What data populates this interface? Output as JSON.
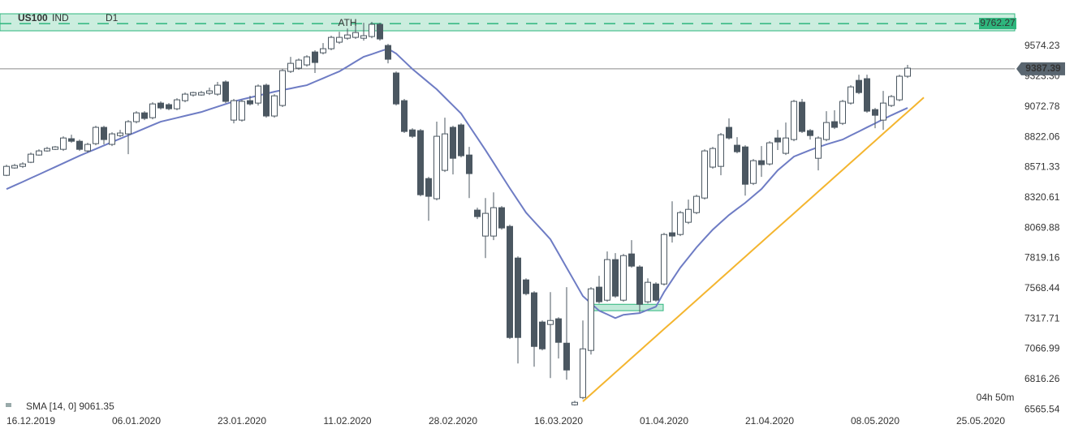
{
  "chart_data": {
    "type": "candlestick",
    "symbol": "US100",
    "market": "IND",
    "timeframe": "D1",
    "categories": [
      null,
      null,
      null,
      "16.12.2019",
      null,
      null,
      null,
      null,
      null,
      null,
      null,
      null,
      null,
      null,
      null,
      null,
      "06.01.2020",
      null,
      null,
      null,
      null,
      null,
      null,
      null,
      null,
      null,
      null,
      null,
      null,
      "23.01.2020",
      null,
      null,
      null,
      null,
      null,
      null,
      null,
      null,
      null,
      null,
      null,
      null,
      "11.02.2020",
      null,
      null,
      null,
      null,
      null,
      null,
      null,
      null,
      null,
      null,
      null,
      null,
      "28.02.2020",
      null,
      null,
      null,
      null,
      null,
      null,
      null,
      null,
      null,
      null,
      null,
      null,
      "16.03.2020",
      null,
      null,
      null,
      null,
      null,
      null,
      null,
      null,
      null,
      null,
      null,
      null,
      "01.04.2020",
      null,
      null,
      null,
      null,
      null,
      null,
      null,
      null,
      null,
      null,
      null,
      null,
      "21.04.2020",
      null,
      null,
      null,
      null,
      null,
      null,
      null,
      null,
      null,
      null,
      null,
      null,
      "08.05.2020",
      null,
      null,
      null,
      null,
      null,
      null,
      null,
      null,
      null,
      null,
      null,
      null,
      "25.05.2020"
    ],
    "open": [
      8506,
      8567,
      8580,
      8614,
      8674,
      8708,
      8721,
      8721,
      8809,
      8788,
      8708,
      8768,
      8903,
      8762,
      8835,
      8849,
      8950,
      9023,
      8983,
      9104,
      9091,
      9057,
      9124,
      9171,
      9171,
      9185,
      9178,
      9279,
      8963,
      8963,
      9124,
      9104,
      9252,
      8997,
      9084,
      9366,
      9393,
      9420,
      9527,
      9520,
      9554,
      9608,
      9641,
      9648,
      9641,
      9655,
      9756,
      9581,
      9353,
      9124,
      8882,
      8876,
      8479,
      8312,
      8547,
      8903,
      8923,
      8674,
      8218,
      8003,
      8003,
      8238,
      8083,
      7821,
      7640,
      7533,
      7291,
      7271,
      7318,
      7116,
      6606,
      6666,
      7056,
      7580,
      7472,
      7808,
      7472,
      7855,
      7747,
      7459,
      7606,
      7606,
      8030,
      8016,
      8117,
      8197,
      8318,
      8574,
      8580,
      8903,
      8755,
      8741,
      8439,
      8627,
      8600,
      8815,
      8688,
      8802,
      9111,
      8876,
      8647,
      8802,
      8950,
      8936,
      9104,
      9292,
      9306,
      9050,
      8963,
      9084,
      9131,
      9326,
      null,
      null,
      null,
      null,
      null,
      null,
      null,
      null,
      null
    ],
    "high": [
      8594,
      8600,
      8614,
      8694,
      8721,
      8741,
      8748,
      8829,
      8842,
      8802,
      8775,
      8916,
      8916,
      8862,
      8882,
      8963,
      9037,
      9037,
      9111,
      9118,
      9104,
      9144,
      9191,
      9198,
      9205,
      9232,
      9279,
      9292,
      9138,
      9131,
      9164,
      9258,
      9265,
      9178,
      9386,
      9487,
      9473,
      9500,
      9541,
      9601,
      9662,
      9695,
      9722,
      9749,
      9769,
      9776,
      9769,
      9594,
      9366,
      9138,
      8896,
      8889,
      8493,
      8950,
      8983,
      8916,
      8936,
      8741,
      8238,
      8318,
      8365,
      8251,
      8097,
      7835,
      7653,
      7546,
      7304,
      7539,
      7331,
      7580,
      6639,
      7304,
      7580,
      7674,
      7875,
      7862,
      7855,
      7969,
      7761,
      7653,
      7620,
      8030,
      8291,
      8211,
      8305,
      8345,
      8721,
      8741,
      8856,
      8977,
      8822,
      8755,
      8641,
      8748,
      8788,
      8882,
      8943,
      9131,
      9138,
      8889,
      8829,
      9037,
      9044,
      9131,
      9252,
      9339,
      9339,
      9064,
      9205,
      9171,
      9339,
      9420,
      null,
      null,
      null,
      null,
      null,
      null,
      null,
      null,
      null
    ],
    "low": [
      8500,
      8560,
      8567,
      8607,
      8668,
      8701,
      8715,
      8708,
      8775,
      8708,
      8694,
      8755,
      8762,
      8748,
      8822,
      8681,
      8936,
      8963,
      8970,
      9050,
      9044,
      9044,
      9111,
      9158,
      9164,
      9171,
      9164,
      9104,
      8936,
      8950,
      9084,
      9084,
      8983,
      8983,
      9071,
      9353,
      9379,
      9406,
      9353,
      9507,
      9541,
      9594,
      9628,
      9635,
      9621,
      9641,
      9621,
      9433,
      9084,
      8856,
      8815,
      8332,
      8130,
      8298,
      8533,
      8513,
      8654,
      8318,
      8144,
      7821,
      7969,
      8056,
      7150,
      6948,
      7512,
      6921,
      7056,
      6827,
      6989,
      6814,
      6599,
      6653,
      7022,
      7445,
      7459,
      7492,
      7459,
      7741,
      7371,
      7445,
      7459,
      7593,
      7949,
      8003,
      8103,
      8184,
      8305,
      8560,
      8506,
      8802,
      8688,
      8338,
      8426,
      8493,
      8587,
      8715,
      8674,
      8788,
      8856,
      8802,
      8547,
      8788,
      8889,
      8923,
      9091,
      9178,
      9023,
      8896,
      8882,
      9071,
      9118,
      9312,
      null,
      null,
      null,
      null,
      null,
      null,
      null,
      null,
      null
    ],
    "close": [
      8580,
      8587,
      8600,
      8681,
      8708,
      8728,
      8741,
      8815,
      8788,
      8721,
      8762,
      8903,
      8802,
      8849,
      8856,
      8950,
      9023,
      8977,
      9097,
      9064,
      9057,
      9131,
      9178,
      9191,
      9191,
      9205,
      9252,
      9118,
      9124,
      9118,
      9097,
      9245,
      8997,
      9164,
      9373,
      9433,
      9460,
      9487,
      9440,
      9554,
      9648,
      9648,
      9668,
      9688,
      9662,
      9756,
      9635,
      9467,
      9097,
      8869,
      8829,
      8345,
      8332,
      8829,
      8849,
      8647,
      8668,
      8520,
      8164,
      8191,
      8238,
      8070,
      7163,
      7163,
      7526,
      7089,
      7069,
      7304,
      7123,
      6894,
      6626,
      7069,
      7566,
      7459,
      7808,
      7506,
      7841,
      7754,
      7438,
      7620,
      7472,
      8016,
      8003,
      8197,
      8224,
      8332,
      8708,
      8728,
      8842,
      8815,
      8701,
      8432,
      8627,
      8594,
      8775,
      8782,
      8815,
      9118,
      8869,
      8835,
      8815,
      8943,
      8903,
      9118,
      9238,
      9191,
      9037,
      9003,
      9104,
      9158,
      9326,
      9393,
      null,
      null,
      null,
      null,
      null,
      null,
      null,
      null,
      null
    ],
    "up_color": "#ffffff",
    "down_color": "#4b5761",
    "candle_border": "#4b5761",
    "sma": {
      "label": "SMA [14, 0] 9061.35",
      "color": "#6e7cc4",
      "values": [
        8392,
        8422,
        8452,
        8483,
        8513,
        8544,
        8575,
        8606,
        8637,
        8668,
        8696,
        8724,
        8753,
        8781,
        8809,
        8837,
        8865,
        8894,
        8922,
        8950,
        8966,
        8982,
        8998,
        9014,
        9030,
        9052,
        9074,
        9096,
        9118,
        9134,
        9150,
        9166,
        9182,
        9198,
        9212,
        9225,
        9239,
        9252,
        9281,
        9309,
        9338,
        9366,
        9406,
        9447,
        9487,
        9509,
        9532,
        9554,
        9514,
        9450,
        9386,
        9330,
        9274,
        9218,
        9151,
        9084,
        9017,
        8916,
        8816,
        8715,
        8610,
        8504,
        8399,
        8298,
        8197,
        8123,
        8050,
        7976,
        7859,
        7741,
        7624,
        7506,
        7446,
        7385,
        7355,
        7324,
        7351,
        7358,
        7365,
        7392,
        7418,
        7539,
        7640,
        7741,
        7825,
        7909,
        7983,
        8056,
        8117,
        8177,
        8228,
        8278,
        8335,
        8392,
        8470,
        8547,
        8604,
        8661,
        8688,
        8715,
        8739,
        8762,
        8782,
        8802,
        8836,
        8869,
        8903,
        8936,
        8970,
        9003,
        9034,
        9064,
        null,
        null,
        null,
        null,
        null,
        null,
        null,
        null,
        null
      ]
    },
    "trendline": {
      "color": "#f4b52f",
      "values": [
        null,
        null,
        null,
        null,
        null,
        null,
        null,
        null,
        null,
        null,
        null,
        null,
        null,
        null,
        null,
        null,
        null,
        null,
        null,
        null,
        null,
        null,
        null,
        null,
        null,
        null,
        null,
        null,
        null,
        null,
        null,
        null,
        null,
        null,
        null,
        null,
        null,
        null,
        null,
        null,
        null,
        null,
        null,
        null,
        null,
        null,
        null,
        null,
        null,
        null,
        null,
        null,
        null,
        null,
        null,
        null,
        null,
        null,
        null,
        null,
        null,
        null,
        null,
        null,
        null,
        null,
        null,
        null,
        null,
        null,
        null,
        6633,
        6693,
        6753,
        6813,
        6873,
        6933,
        6993,
        7053,
        7113,
        7173,
        7233,
        7292,
        7352,
        7412,
        7472,
        7532,
        7592,
        7652,
        7712,
        7772,
        7832,
        7892,
        7952,
        8012,
        8072,
        8131,
        8191,
        8251,
        8311,
        8371,
        8431,
        8491,
        8551,
        8611,
        8671,
        8731,
        8791,
        8851,
        8911,
        8971,
        9030,
        9090,
        9150,
        null,
        null,
        null,
        null,
        null,
        null,
        null
      ]
    },
    "ath": {
      "label": "ATH",
      "level": 9762.27,
      "color": "#2eb67d"
    },
    "support_zone": {
      "low": 7385,
      "high": 7438,
      "color": "#2eb67d"
    },
    "current_price": 9387.39,
    "countdown": "04h 50m",
    "ylim": [
      6520,
      9850
    ],
    "yticks": [
      6565.54,
      6816.26,
      7066.99,
      7317.71,
      7568.44,
      7819.16,
      8069.88,
      8320.61,
      8571.33,
      8822.06,
      9072.78,
      {
        "value": 9323.3,
        "label": "9323.30"
      },
      9574.23
    ],
    "grid": true
  }
}
